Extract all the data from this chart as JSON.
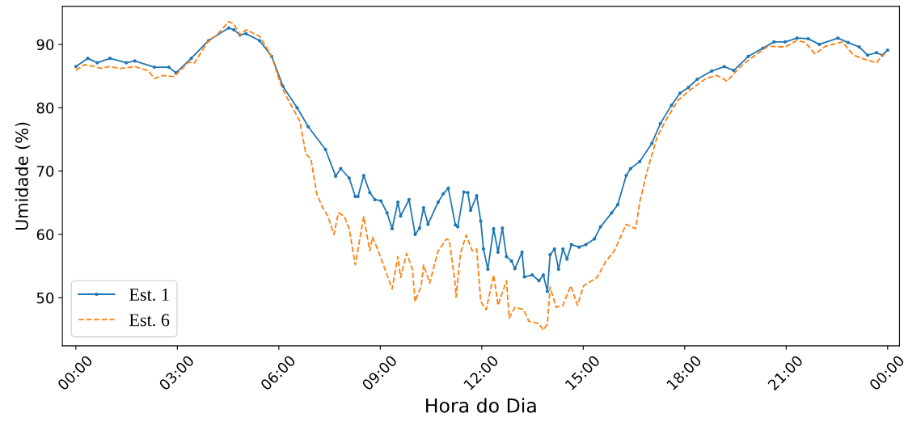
{
  "chart_data": {
    "type": "line",
    "xlabel": "Hora do Dia",
    "ylabel": "Umidade (%)",
    "xlim": [
      -0.4,
      24.35
    ],
    "ylim": [
      42.4,
      96
    ],
    "xticks": [
      {
        "value": 0,
        "label": "00:00"
      },
      {
        "value": 3,
        "label": "03:00"
      },
      {
        "value": 6,
        "label": "06:00"
      },
      {
        "value": 9,
        "label": "09:00"
      },
      {
        "value": 12,
        "label": "12:00"
      },
      {
        "value": 15,
        "label": "15:00"
      },
      {
        "value": 18,
        "label": "18:00"
      },
      {
        "value": 21,
        "label": "21:00"
      },
      {
        "value": 24,
        "label": "00:00"
      }
    ],
    "yticks": [
      50,
      60,
      70,
      80,
      90
    ],
    "grid": false,
    "legend": "bottom left",
    "series": [
      {
        "name": "Est. 1",
        "color": "#1f77b4",
        "marker": "circle",
        "line_style": "solid",
        "x": [
          0.0,
          0.35,
          0.63,
          1.01,
          1.49,
          1.74,
          2.32,
          2.75,
          2.96,
          3.41,
          3.92,
          4.52,
          4.67,
          4.85,
          5.03,
          5.43,
          5.79,
          6.12,
          6.54,
          6.87,
          7.38,
          7.68,
          7.83,
          8.08,
          8.26,
          8.34,
          8.51,
          8.69,
          8.84,
          9.02,
          9.2,
          9.35,
          9.52,
          9.6,
          9.85,
          10.03,
          10.16,
          10.28,
          10.41,
          10.71,
          10.86,
          11.01,
          11.22,
          11.29,
          11.47,
          11.59,
          11.67,
          11.85,
          11.97,
          12.05,
          12.18,
          12.35,
          12.48,
          12.61,
          12.73,
          12.88,
          12.98,
          13.19,
          13.26,
          13.49,
          13.69,
          13.82,
          13.94,
          14.02,
          14.15,
          14.27,
          14.4,
          14.52,
          14.65,
          14.88,
          15.08,
          15.33,
          15.51,
          15.84,
          16.02,
          16.27,
          16.4,
          16.67,
          17.03,
          17.28,
          17.61,
          17.86,
          18.11,
          18.37,
          18.8,
          19.17,
          19.45,
          19.88,
          20.31,
          20.64,
          20.97,
          21.32,
          21.65,
          21.98,
          22.53,
          22.83,
          23.16,
          23.41,
          23.67,
          23.84,
          24.0
        ],
        "values": [
          86.5,
          87.8,
          87.1,
          87.8,
          87.1,
          87.4,
          86.4,
          86.4,
          85.5,
          87.8,
          90.6,
          92.6,
          92.3,
          91.5,
          91.7,
          90.6,
          88.1,
          83.4,
          80.0,
          77.0,
          73.4,
          69.2,
          70.4,
          68.9,
          66.0,
          66.0,
          69.3,
          66.6,
          65.5,
          65.3,
          63.4,
          60.9,
          65.1,
          62.9,
          65.5,
          60.0,
          61.0,
          64.2,
          61.6,
          65.1,
          66.4,
          67.3,
          61.5,
          61.2,
          66.7,
          66.6,
          63.8,
          66.1,
          62.1,
          57.7,
          54.5,
          60.9,
          57.2,
          61.0,
          56.5,
          55.8,
          54.6,
          57.2,
          53.3,
          53.6,
          52.7,
          53.6,
          51.0,
          56.8,
          57.7,
          54.5,
          57.7,
          56.1,
          58.4,
          58.0,
          58.4,
          59.3,
          61.2,
          63.4,
          64.7,
          69.3,
          70.4,
          71.5,
          74.4,
          77.5,
          80.4,
          82.3,
          83.2,
          84.5,
          85.8,
          86.5,
          85.9,
          88.1,
          89.4,
          90.4,
          90.4,
          91.0,
          90.9,
          90.0,
          91.0,
          90.3,
          89.6,
          88.3,
          88.7,
          88.3,
          89.1
        ]
      },
      {
        "name": "Est. 6",
        "color": "#ff7f0e",
        "marker": "none",
        "line_style": "dashed",
        "x": [
          0.0,
          0.25,
          0.56,
          0.73,
          0.99,
          1.31,
          1.74,
          2.15,
          2.32,
          2.58,
          2.91,
          3.01,
          3.33,
          3.51,
          3.92,
          4.17,
          4.52,
          4.67,
          4.85,
          5.03,
          5.43,
          5.79,
          6.04,
          6.19,
          6.62,
          6.8,
          6.95,
          7.12,
          7.3,
          7.45,
          7.63,
          7.76,
          7.93,
          8.08,
          8.26,
          8.51,
          8.69,
          8.77,
          8.94,
          9.09,
          9.35,
          9.52,
          9.6,
          9.78,
          9.95,
          10.03,
          10.21,
          10.28,
          10.46,
          10.71,
          10.96,
          11.04,
          11.22,
          11.24,
          11.37,
          11.54,
          11.72,
          11.85,
          11.97,
          12.13,
          12.35,
          12.48,
          12.73,
          12.81,
          12.98,
          13.24,
          13.39,
          13.69,
          13.82,
          13.94,
          14.02,
          14.2,
          14.4,
          14.63,
          14.83,
          15.01,
          15.41,
          15.66,
          15.92,
          16.27,
          16.55,
          16.67,
          16.9,
          17.18,
          17.43,
          17.79,
          18.11,
          18.62,
          18.95,
          19.25,
          19.63,
          19.96,
          20.46,
          20.97,
          21.32,
          21.57,
          21.85,
          22.16,
          22.66,
          22.99,
          23.29,
          23.67,
          23.84,
          24.0
        ],
        "values": [
          85.9,
          86.8,
          86.5,
          86.2,
          86.5,
          86.2,
          86.5,
          85.8,
          84.6,
          85.1,
          84.9,
          85.5,
          87.2,
          87.1,
          90.6,
          91.5,
          93.6,
          93.2,
          91.5,
          92.3,
          91.3,
          88.1,
          83.9,
          82.1,
          77.9,
          72.7,
          71.9,
          66.4,
          64.2,
          62.9,
          60.0,
          63.4,
          62.9,
          60.9,
          55.2,
          62.8,
          57.4,
          59.6,
          57.4,
          55.2,
          51.4,
          56.5,
          53.2,
          57.0,
          54.5,
          49.4,
          51.9,
          55.2,
          52.3,
          57.4,
          59.3,
          59.1,
          51.9,
          50.1,
          57.0,
          59.9,
          57.4,
          57.7,
          49.4,
          48.1,
          53.6,
          48.8,
          52.7,
          46.8,
          48.5,
          48.1,
          46.3,
          45.9,
          44.9,
          45.9,
          51.7,
          48.5,
          48.8,
          51.9,
          48.8,
          51.9,
          53.2,
          55.7,
          57.4,
          61.6,
          60.9,
          65.1,
          70.2,
          75.3,
          77.9,
          81.1,
          82.6,
          84.6,
          85.1,
          84.2,
          86.4,
          87.8,
          89.7,
          89.6,
          90.6,
          90.3,
          88.5,
          89.7,
          90.4,
          88.3,
          87.7,
          87.1,
          88.3,
          88.7
        ]
      }
    ]
  }
}
